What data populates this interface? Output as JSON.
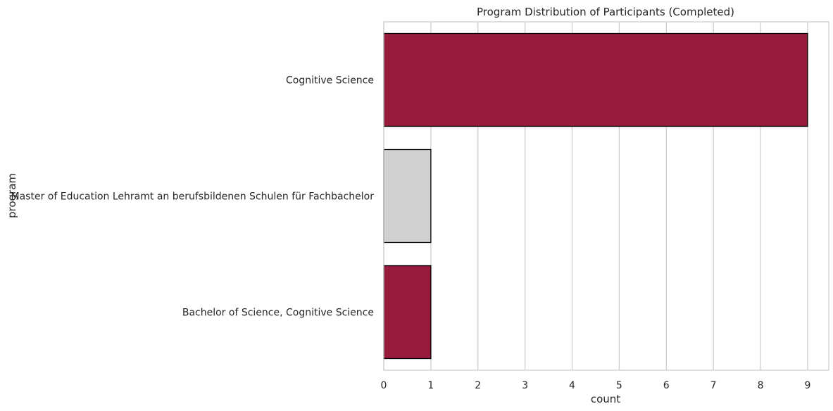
{
  "chart_data": {
    "type": "bar",
    "orientation": "horizontal",
    "title": "Program Distribution of Participants (Completed)",
    "xlabel": "count",
    "ylabel": "program",
    "categories": [
      "Cognitive Science",
      "Master of Education Lehramt an berufsbildenen Schulen für Fachbachelor",
      "Bachelor of Science, Cognitive Science"
    ],
    "values": [
      9,
      1,
      1
    ],
    "bar_colors": [
      "#961b3c",
      "#d0d0d0",
      "#961b3c"
    ],
    "xlim": [
      0,
      9.45
    ],
    "xticks": [
      0,
      1,
      2,
      3,
      4,
      5,
      6,
      7,
      8,
      9
    ],
    "grid": "vertical"
  }
}
